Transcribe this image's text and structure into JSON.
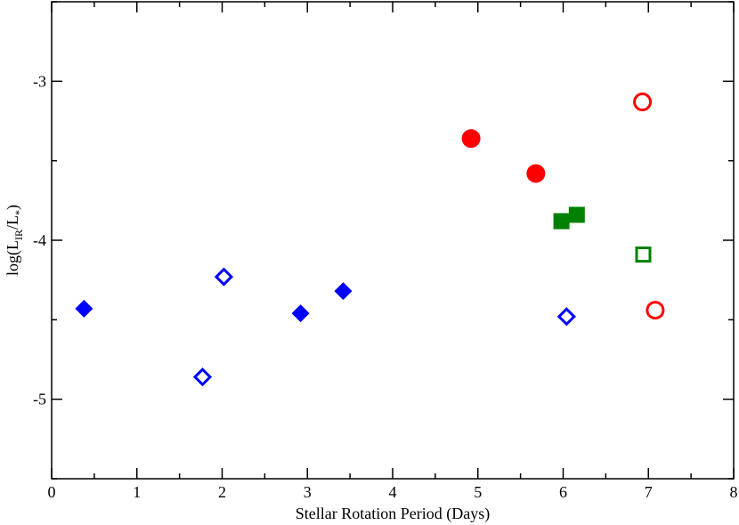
{
  "chart_data": {
    "type": "scatter",
    "title": "",
    "xlabel": "Stellar Rotation Period (Days)",
    "ylabel": {
      "prefix": "log(L",
      "sub1": "IR",
      "middle": "/L",
      "sub2": "*",
      "suffix": ")"
    },
    "xlim": [
      0,
      8
    ],
    "ylim": [
      -5.5,
      -2.5
    ],
    "x_ticks": [
      0,
      1,
      2,
      3,
      4,
      5,
      6,
      7,
      8
    ],
    "y_ticks": [
      -3,
      -4,
      -5
    ],
    "grid": false,
    "series": [
      {
        "marker": "diamond",
        "filled": true,
        "color": "#0000ff",
        "points": [
          [
            0.38,
            -4.43
          ],
          [
            2.92,
            -4.46
          ],
          [
            3.42,
            -4.32
          ]
        ]
      },
      {
        "marker": "diamond",
        "filled": false,
        "color": "#0000ff",
        "points": [
          [
            2.02,
            -4.23
          ],
          [
            1.77,
            -4.86
          ],
          [
            6.04,
            -4.48
          ]
        ]
      },
      {
        "marker": "circle",
        "filled": true,
        "color": "#ff0000",
        "points": [
          [
            4.92,
            -3.36
          ],
          [
            5.68,
            -3.58
          ]
        ]
      },
      {
        "marker": "circle",
        "filled": false,
        "color": "#ff0000",
        "points": [
          [
            6.93,
            -3.13
          ],
          [
            7.08,
            -4.44
          ]
        ]
      },
      {
        "marker": "square",
        "filled": true,
        "color": "#008000",
        "points": [
          [
            5.98,
            -3.88
          ],
          [
            6.16,
            -3.84
          ]
        ]
      },
      {
        "marker": "square",
        "filled": false,
        "color": "#008000",
        "points": [
          [
            6.94,
            -4.09
          ]
        ]
      }
    ]
  }
}
